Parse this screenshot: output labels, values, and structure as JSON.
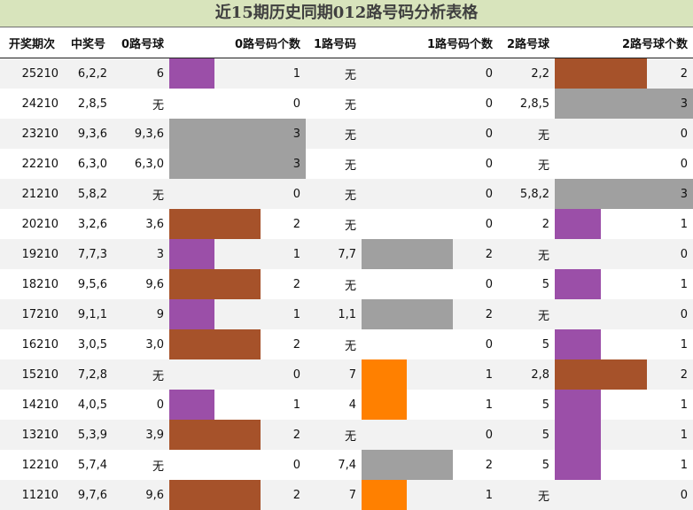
{
  "title": "近15期历史同期012路号码分析表格",
  "headers": [
    "开奖期次",
    "中奖号",
    "0路号球",
    "0路号码个数",
    "1路号码",
    "1路号码个数",
    "2路号球",
    "2路号球个数"
  ],
  "colors": {
    "one": "#9b4fa8",
    "two": "#a6522a",
    "three": "#a0a0a0",
    "orange": "#ff8000"
  },
  "rows": [
    {
      "period": "25210",
      "win": "6,2,2",
      "r0": "6",
      "c0": "1",
      "r1": "无",
      "c1": "0",
      "r2": "2,2",
      "c2": "2"
    },
    {
      "period": "24210",
      "win": "2,8,5",
      "r0": "无",
      "c0": "0",
      "r1": "无",
      "c1": "0",
      "r2": "2,8,5",
      "c2": "3"
    },
    {
      "period": "23210",
      "win": "9,3,6",
      "r0": "9,3,6",
      "c0": "3",
      "r1": "无",
      "c1": "0",
      "r2": "无",
      "c2": "0"
    },
    {
      "period": "22210",
      "win": "6,3,0",
      "r0": "6,3,0",
      "c0": "3",
      "r1": "无",
      "c1": "0",
      "r2": "无",
      "c2": "0"
    },
    {
      "period": "21210",
      "win": "5,8,2",
      "r0": "无",
      "c0": "0",
      "r1": "无",
      "c1": "0",
      "r2": "5,8,2",
      "c2": "3"
    },
    {
      "period": "20210",
      "win": "3,2,6",
      "r0": "3,6",
      "c0": "2",
      "r1": "无",
      "c1": "0",
      "r2": "2",
      "c2": "1"
    },
    {
      "period": "19210",
      "win": "7,7,3",
      "r0": "3",
      "c0": "1",
      "r1": "7,7",
      "c1": "2",
      "r2": "无",
      "c2": "0"
    },
    {
      "period": "18210",
      "win": "9,5,6",
      "r0": "9,6",
      "c0": "2",
      "r1": "无",
      "c1": "0",
      "r2": "5",
      "c2": "1"
    },
    {
      "period": "17210",
      "win": "9,1,1",
      "r0": "9",
      "c0": "1",
      "r1": "1,1",
      "c1": "2",
      "r2": "无",
      "c2": "0"
    },
    {
      "period": "16210",
      "win": "3,0,5",
      "r0": "3,0",
      "c0": "2",
      "r1": "无",
      "c1": "0",
      "r2": "5",
      "c2": "1"
    },
    {
      "period": "15210",
      "win": "7,2,8",
      "r0": "无",
      "c0": "0",
      "r1": "7",
      "c1": "1",
      "r2": "2,8",
      "c2": "2"
    },
    {
      "period": "14210",
      "win": "4,0,5",
      "r0": "0",
      "c0": "1",
      "r1": "4",
      "c1": "1",
      "r2": "5",
      "c2": "1"
    },
    {
      "period": "13210",
      "win": "5,3,9",
      "r0": "3,9",
      "c0": "2",
      "r1": "无",
      "c1": "0",
      "r2": "5",
      "c2": "1"
    },
    {
      "period": "12210",
      "win": "5,7,4",
      "r0": "无",
      "c0": "0",
      "r1": "7,4",
      "c1": "2",
      "r2": "5",
      "c2": "1"
    },
    {
      "period": "11210",
      "win": "9,7,6",
      "r0": "9,6",
      "c0": "2",
      "r1": "7",
      "c1": "1",
      "r2": "无",
      "c2": "0"
    }
  ]
}
